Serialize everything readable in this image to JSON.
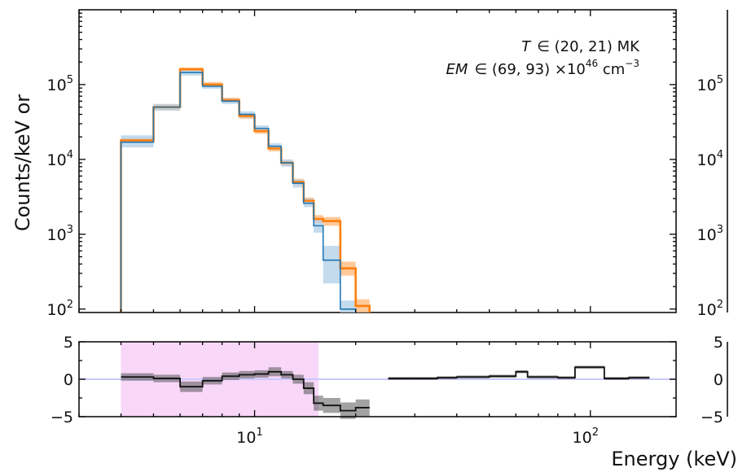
{
  "chart_data": [
    {
      "type": "line",
      "panel": "spectrum",
      "ylabel": "Counts/keV or",
      "yscale": "log",
      "xscale": "log",
      "xlim": [
        3.0,
        180
      ],
      "ylim": [
        90,
        1000000
      ],
      "y_ticks": [
        {
          "value": 100,
          "base": "10",
          "exp": "2"
        },
        {
          "value": 1000,
          "base": "10",
          "exp": "3"
        },
        {
          "value": 10000,
          "base": "10",
          "exp": "4"
        },
        {
          "value": 100000,
          "base": "10",
          "exp": "5"
        }
      ],
      "annotations": [
        {
          "symbol": "T",
          "rest": "∈ (20, 21) MK"
        },
        {
          "symbol": "EM",
          "rest": "∈ (69, 93) ×10",
          "sup": "46",
          "tail": " cm",
          "sup2": "−3"
        }
      ],
      "bin_edges": [
        4.0,
        5.0,
        6.0,
        7.0,
        8.0,
        9.0,
        10.0,
        11.0,
        12.0,
        13.0,
        14.0,
        15.0,
        16.0,
        18.0,
        20.0,
        22.0
      ],
      "series": [
        {
          "color": "#ff7f0e",
          "band": "#ffbb80",
          "values": [
            18000,
            50000,
            160000,
            100000,
            62000,
            38000,
            24000,
            14000,
            9000,
            5000,
            2800,
            1600,
            1500,
            350,
            110
          ],
          "band_low": [
            16500,
            45000,
            150000,
            93000,
            58000,
            35000,
            22000,
            12800,
            8200,
            4500,
            2500,
            1400,
            1300,
            280,
            90
          ],
          "band_high": [
            19500,
            55000,
            170000,
            108000,
            67000,
            41000,
            26000,
            15200,
            9800,
            5500,
            3100,
            1800,
            1700,
            430,
            135
          ]
        },
        {
          "color": "#1f77b4",
          "band": "#b5d2ea",
          "values": [
            17000,
            50000,
            145000,
            95000,
            60000,
            40000,
            26000,
            15000,
            9000,
            4800,
            2600,
            1300,
            450,
            100,
            null
          ],
          "band_low": [
            14500,
            45000,
            132000,
            88000,
            55000,
            36000,
            23500,
            13500,
            8000,
            4200,
            2300,
            1050,
            220,
            90,
            null
          ],
          "band_high": [
            21000,
            55000,
            160000,
            103000,
            65000,
            44000,
            28500,
            16500,
            10000,
            5400,
            3000,
            1550,
            700,
            130,
            null
          ]
        }
      ]
    },
    {
      "type": "line",
      "panel": "residuals",
      "xlabel": "Energy (keV)",
      "xscale": "log",
      "xlim": [
        3.0,
        180
      ],
      "ylim": [
        -5,
        5
      ],
      "y_ticks": [
        "5",
        "0",
        "−5"
      ],
      "x_ticks": [
        {
          "value": 10,
          "base": "10",
          "exp": "1"
        },
        {
          "value": 100,
          "base": "10",
          "exp": "2"
        }
      ],
      "shaded_range": {
        "x": [
          4.0,
          15.5
        ],
        "color": "#f8d7f8"
      },
      "zero_line_color": "#c9c9ff",
      "bin_edges": [
        4.0,
        5.0,
        6.0,
        7.0,
        8.0,
        9.0,
        10.0,
        11.0,
        12.0,
        13.0,
        14.0,
        15.0,
        16.0,
        18.0,
        20.0,
        22.0,
        25.0,
        30.0,
        35.0,
        40.0,
        50.0,
        60.0,
        65.0,
        80.0,
        90.0,
        110.0,
        130.0,
        150.0
      ],
      "residuals": [
        0.3,
        0.1,
        -1.0,
        -0.2,
        0.4,
        0.6,
        0.7,
        1.0,
        0.6,
        0.0,
        -1.2,
        -3.2,
        -3.5,
        -4.2,
        -3.8,
        null,
        0.1,
        0.1,
        0.2,
        0.3,
        0.4,
        1.0,
        0.3,
        0.2,
        1.6,
        0.1,
        0.2
      ],
      "band_width": [
        0.5,
        0.5,
        0.7,
        0.5,
        0.5,
        0.5,
        0.5,
        0.6,
        0.5,
        0.6,
        0.8,
        1.0,
        1.0,
        1.1,
        1.1,
        null,
        0.2,
        0.2,
        0.2,
        0.2,
        0.2,
        0.2,
        0.2,
        0.2,
        0.2,
        0.2,
        0.2
      ]
    }
  ],
  "right_panel_partial": {
    "y_ticks_top": [
      {
        "base": "10",
        "exp": "5"
      },
      {
        "base": "10",
        "exp": "4"
      },
      {
        "base": "10",
        "exp": "3"
      },
      {
        "base": "10",
        "exp": "2"
      }
    ],
    "y_ticks_bottom": [
      "5",
      "0",
      "−5"
    ]
  }
}
